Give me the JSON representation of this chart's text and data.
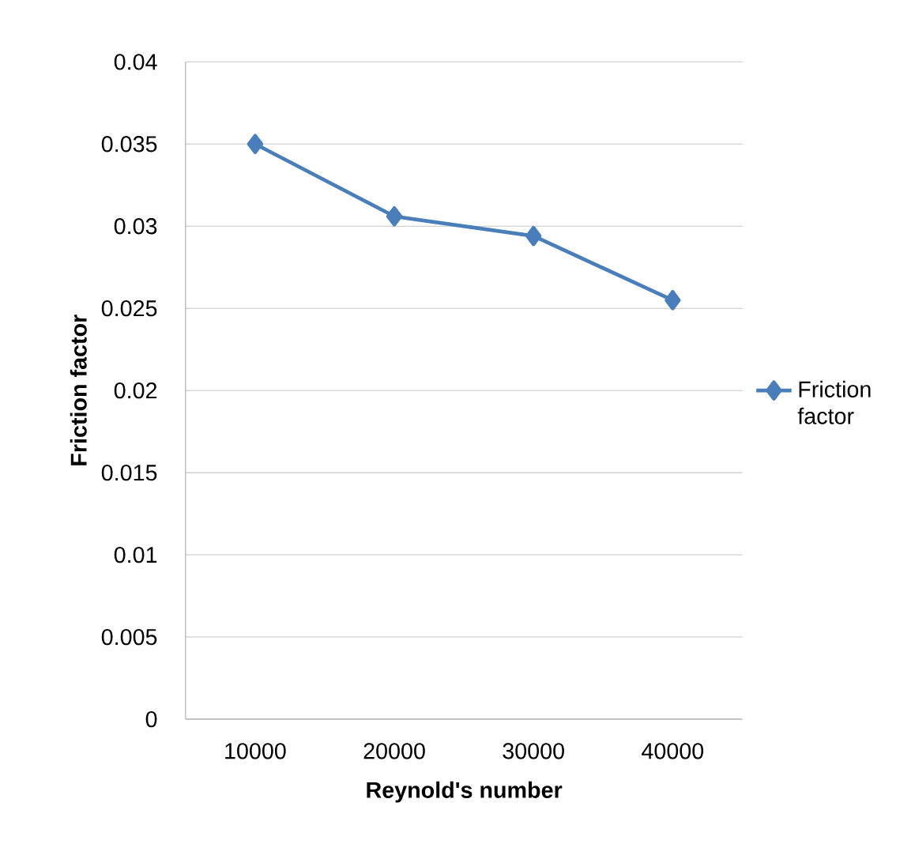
{
  "chart_data": {
    "type": "line",
    "xlabel": "Reynold's number",
    "ylabel": "Friction factor",
    "categories": [
      "10000",
      "20000",
      "30000",
      "40000"
    ],
    "series": [
      {
        "name": "Friction factor",
        "color": "#4a7ebb",
        "values": [
          0.035,
          0.0306,
          0.0294,
          0.0255
        ]
      }
    ],
    "ylim": [
      0,
      0.04
    ],
    "yticks": [
      0,
      0.005,
      0.01,
      0.015,
      0.02,
      0.025,
      0.03,
      0.035,
      0.04
    ],
    "grid": "y",
    "legend": "right",
    "marker": "diamond",
    "line_style": "solid"
  }
}
